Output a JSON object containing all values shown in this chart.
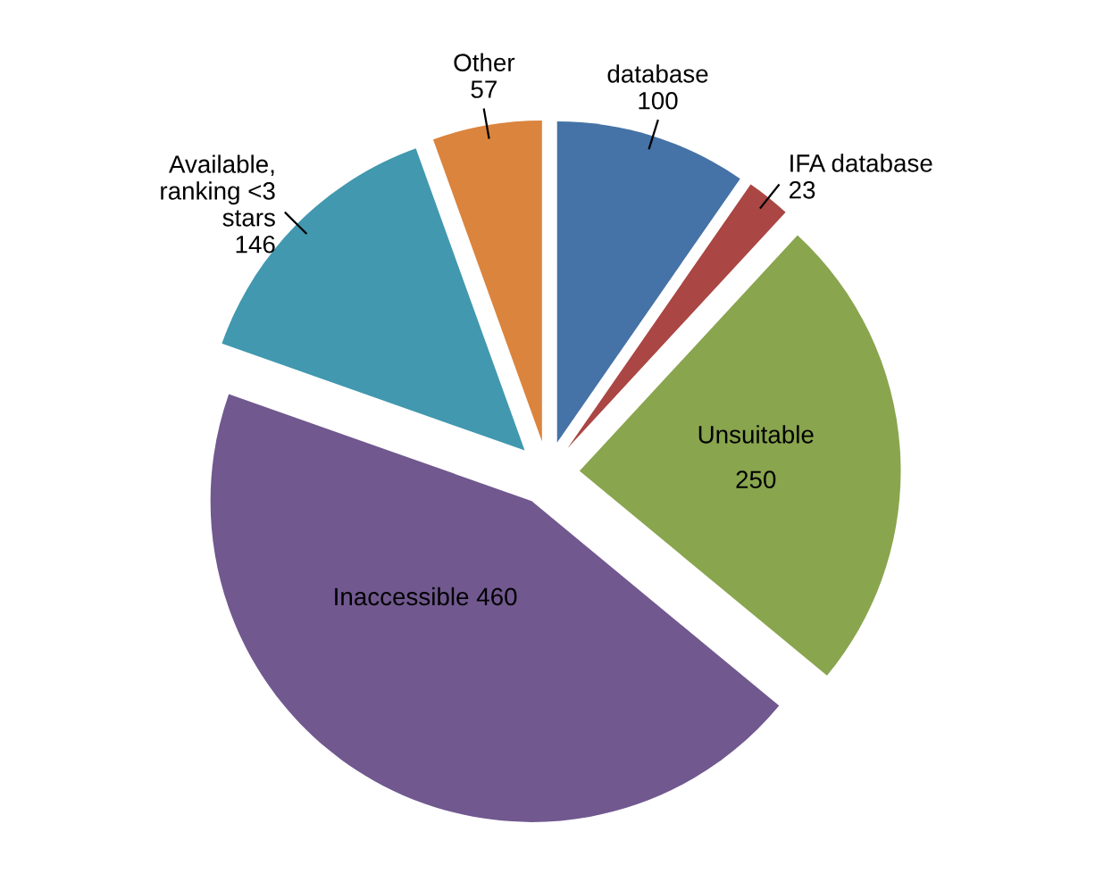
{
  "chart_data": {
    "type": "pie",
    "categories": [
      "database",
      "IFA database",
      "Unsuitable",
      "Inaccessible",
      "Available,\nranking <3\nstars",
      "Other"
    ],
    "values": [
      100,
      23,
      250,
      460,
      146,
      57
    ],
    "colors": [
      "#4572a7",
      "#aa4643",
      "#89a54e",
      "#71588f",
      "#4198af",
      "#db843d"
    ],
    "data_labels": true,
    "legend": false
  }
}
